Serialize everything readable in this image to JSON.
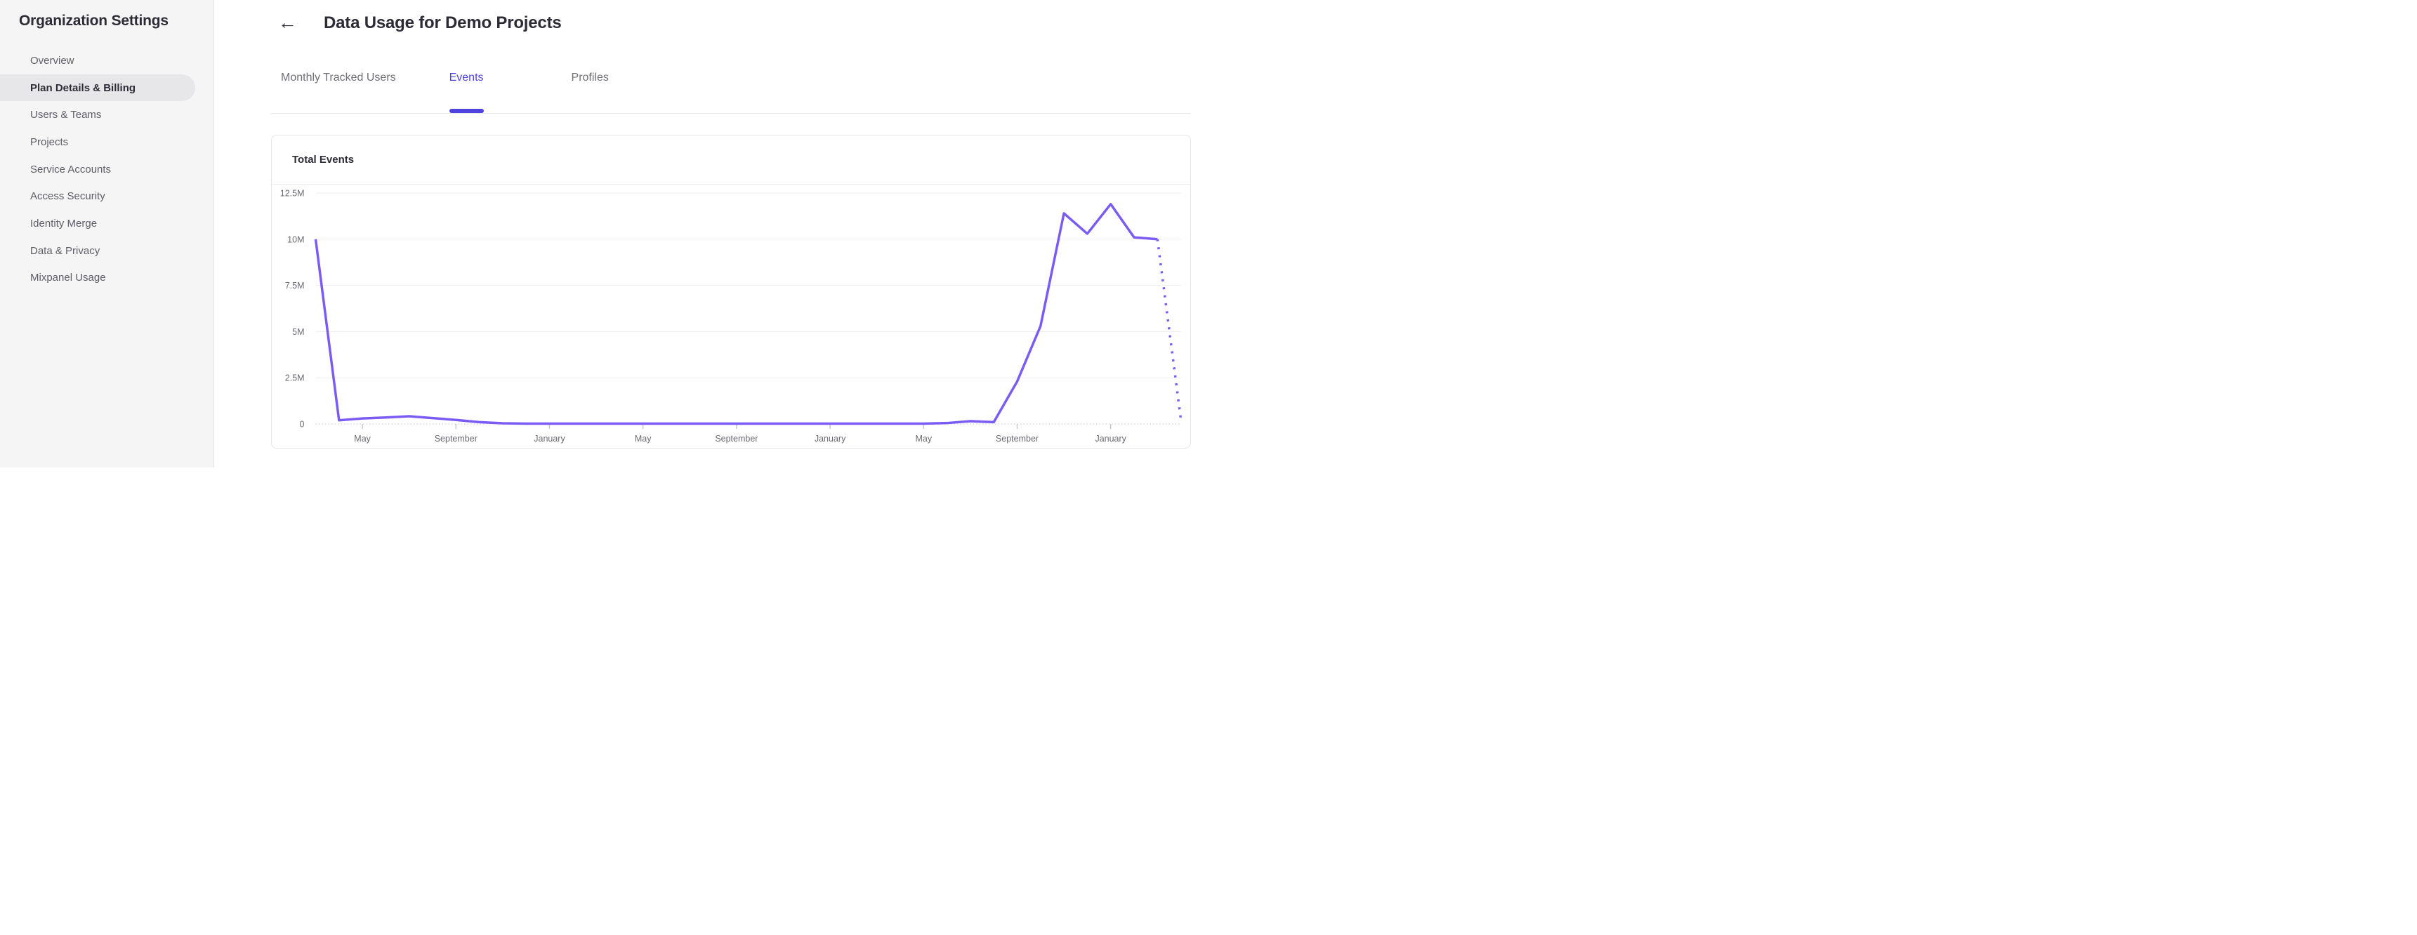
{
  "sidebar": {
    "title": "Organization Settings",
    "items": [
      {
        "label": "Overview",
        "active": false
      },
      {
        "label": "Plan Details & Billing",
        "active": true
      },
      {
        "label": "Users & Teams",
        "active": false
      },
      {
        "label": "Projects",
        "active": false
      },
      {
        "label": "Service Accounts",
        "active": false
      },
      {
        "label": "Access Security",
        "active": false
      },
      {
        "label": "Identity Merge",
        "active": false
      },
      {
        "label": "Data & Privacy",
        "active": false
      },
      {
        "label": "Mixpanel Usage",
        "active": false
      }
    ]
  },
  "header": {
    "back_icon": "←",
    "title": "Data Usage for Demo Projects"
  },
  "tabs": [
    {
      "label": "Monthly Tracked Users",
      "active": false
    },
    {
      "label": "Events",
      "active": true
    },
    {
      "label": "Profiles",
      "active": false
    }
  ],
  "card": {
    "title": "Total Events"
  },
  "colors": {
    "accent": "#4f44e0",
    "line": "#7a5cf5",
    "grid": "#ededee",
    "axis_dotted": "#d8d8d8",
    "tick": "#c9c9c9",
    "axis_text": "#6b6a72"
  },
  "chart_data": {
    "type": "line",
    "title": "Total Events",
    "ylabel": "",
    "xlabel": "",
    "ylim_millions": [
      0,
      12.5
    ],
    "grid": true,
    "legend": false,
    "y_ticks": [
      {
        "value_millions": 12.5,
        "label": "12.5M"
      },
      {
        "value_millions": 10,
        "label": "10M"
      },
      {
        "value_millions": 7.5,
        "label": "7.5M"
      },
      {
        "value_millions": 5,
        "label": "5M"
      },
      {
        "value_millions": 2.5,
        "label": "2.5M"
      },
      {
        "value_millions": 0,
        "label": "0"
      }
    ],
    "x_ticks": [
      {
        "index": 2,
        "label": "May"
      },
      {
        "index": 6,
        "label": "September"
      },
      {
        "index": 10,
        "label": "January"
      },
      {
        "index": 14,
        "label": "May"
      },
      {
        "index": 18,
        "label": "September"
      },
      {
        "index": 22,
        "label": "January"
      },
      {
        "index": 26,
        "label": "May"
      },
      {
        "index": 30,
        "label": "September"
      },
      {
        "index": 34,
        "label": "January"
      }
    ],
    "series": [
      {
        "name": "Total Events",
        "interval": "monthly",
        "values_millions": [
          10,
          0.2,
          0.3,
          0.35,
          0.42,
          0.32,
          0.22,
          0.1,
          0.04,
          0.02,
          0.02,
          0.02,
          0.02,
          0.02,
          0.02,
          0.02,
          0.02,
          0.02,
          0.02,
          0.02,
          0.02,
          0.02,
          0.02,
          0.02,
          0.02,
          0.02,
          0.02,
          0.05,
          0.15,
          0.1,
          2.3,
          5.3,
          11.4,
          10.3,
          11.9,
          10.1,
          10.0,
          0.25
        ],
        "dashed_from_index": 36
      }
    ]
  }
}
